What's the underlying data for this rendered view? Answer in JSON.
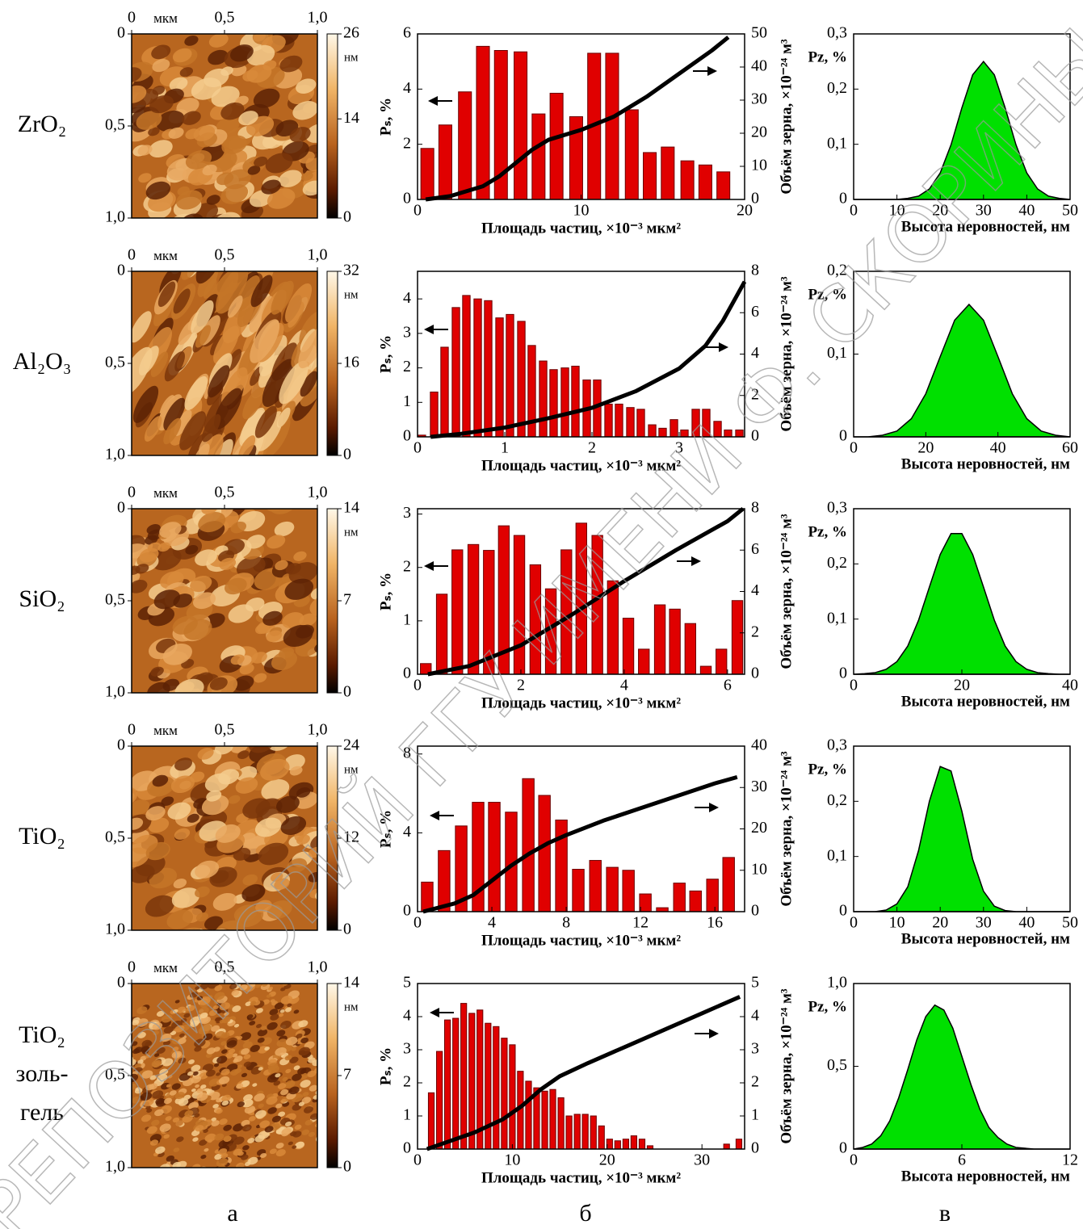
{
  "figure": {
    "row_labels": [
      [
        "ZrO₂"
      ],
      [
        "Al₂O₃"
      ],
      [
        "SiO₂"
      ],
      [
        "TiO₂"
      ],
      [
        "TiO₂",
        "золь-",
        "гель"
      ]
    ],
    "panel_labels": [
      "а",
      "б",
      "в"
    ],
    "watermark": "РЕПОЗИТОРИЙ ГГУ ИМЕНИ Ф. СКОРИНЫ"
  },
  "chart_data": [
    {
      "type": "image",
      "xlim": [
        0,
        1
      ],
      "xticks": [
        0,
        {
          "value": 0.5,
          "label": "0,5"
        },
        {
          "value": 1,
          "label": "1,0"
        }
      ],
      "x_unit": "мкм",
      "ylim": [
        0,
        1
      ],
      "yticks": [
        0,
        {
          "value": 0.5,
          "label": "0,5"
        },
        {
          "value": 1,
          "label": "1,0"
        }
      ],
      "y_reversed": true,
      "colorbar": {
        "lim": [
          0,
          26
        ],
        "ticks": [
          0,
          14,
          26
        ],
        "unit": "нм"
      }
    },
    {
      "type": "bar",
      "xlabel": "Площадь частиц, ×10⁻³ мкм²",
      "ylabel": "Pₛ, %",
      "y2label": "Объём зерна, ×10⁻²⁴ м³",
      "xlim": [
        0,
        20
      ],
      "xticks": [
        0,
        10,
        20
      ],
      "ylim": [
        0,
        6
      ],
      "yticks": [
        0,
        2,
        4,
        6
      ],
      "y2lim": [
        0,
        50
      ],
      "y2ticks": [
        0,
        10,
        20,
        30,
        40,
        50
      ],
      "series": [
        {
          "type": "bar",
          "color": "#e00000",
          "x": [
            0.6,
            1.7,
            2.9,
            4.0,
            5.1,
            6.3,
            7.4,
            8.5,
            9.7,
            10.8,
            11.9,
            13.1,
            14.2,
            15.3,
            16.5,
            17.6,
            18.7
          ],
          "values": [
            1.85,
            2.7,
            3.9,
            5.55,
            5.4,
            5.35,
            3.1,
            3.85,
            3.0,
            5.3,
            5.3,
            3.25,
            1.7,
            1.9,
            1.4,
            1.25,
            1.0
          ]
        },
        {
          "type": "line",
          "color": "#000000",
          "axis": "y2",
          "x": [
            0.5,
            2,
            4,
            5,
            6,
            7,
            8,
            10,
            12,
            14,
            16,
            18,
            19
          ],
          "values": [
            0,
            1,
            4,
            7,
            11,
            15,
            18,
            21,
            25,
            31,
            38,
            45,
            49
          ]
        }
      ]
    },
    {
      "type": "area",
      "xlabel": "Высота неровностей, нм",
      "ylabel": "Pᴢ, %",
      "xlim": [
        0,
        50
      ],
      "xticks": [
        0,
        10,
        20,
        30,
        40,
        50
      ],
      "ylim": [
        0,
        0.3
      ],
      "yticks": [
        0,
        {
          "value": 0.1,
          "label": "0,1"
        },
        {
          "value": 0.2,
          "label": "0,2"
        },
        {
          "value": 0.3,
          "label": "0,3"
        }
      ],
      "color": "#00e000",
      "x": [
        0,
        2.5,
        5,
        7.5,
        10,
        12.5,
        15,
        17.5,
        20,
        22.5,
        25,
        27.5,
        30,
        32.5,
        35,
        37.5,
        40,
        42.5,
        45,
        47.5,
        50
      ],
      "values": [
        0,
        0,
        0,
        0,
        0,
        0.002,
        0.006,
        0.019,
        0.048,
        0.099,
        0.166,
        0.226,
        0.25,
        0.226,
        0.166,
        0.099,
        0.048,
        0.019,
        0.006,
        0.002,
        0
      ]
    },
    {
      "type": "image",
      "xlim": [
        0,
        1
      ],
      "xticks": [
        0,
        {
          "value": 0.5,
          "label": "0,5"
        },
        {
          "value": 1,
          "label": "1,0"
        }
      ],
      "x_unit": "мкм",
      "ylim": [
        0,
        1
      ],
      "yticks": [
        0,
        {
          "value": 0.5,
          "label": "0,5"
        },
        {
          "value": 1,
          "label": "1,0"
        }
      ],
      "y_reversed": true,
      "colorbar": {
        "lim": [
          0,
          32
        ],
        "ticks": [
          0,
          16,
          32
        ],
        "unit": "нм"
      }
    },
    {
      "type": "bar",
      "xlabel": "Площадь частиц, ×10⁻³ мкм²",
      "ylabel": "Pₛ, %",
      "y2label": "Объём зерна, ×10⁻²⁴ м³",
      "xlim": [
        0,
        3.75
      ],
      "xticks": [
        0,
        1,
        2,
        3
      ],
      "ylim": [
        0,
        4.8
      ],
      "yticks": [
        0,
        1,
        2,
        3,
        4
      ],
      "y2lim": [
        0,
        8
      ],
      "y2ticks": [
        0,
        2,
        4,
        6,
        8
      ],
      "series": [
        {
          "type": "bar",
          "color": "#e00000",
          "x": [
            0.05,
            0.19,
            0.31,
            0.44,
            0.56,
            0.69,
            0.81,
            0.94,
            1.06,
            1.19,
            1.31,
            1.44,
            1.56,
            1.69,
            1.81,
            1.94,
            2.06,
            2.19,
            2.31,
            2.44,
            2.56,
            2.69,
            2.81,
            2.94,
            3.06,
            3.19,
            3.31,
            3.44,
            3.56,
            3.69
          ],
          "values": [
            0.05,
            1.3,
            2.6,
            3.75,
            4.1,
            4.0,
            3.95,
            3.45,
            3.55,
            3.35,
            2.65,
            2.2,
            1.95,
            2.0,
            2.05,
            1.65,
            1.65,
            0.95,
            0.95,
            0.85,
            0.8,
            0.35,
            0.25,
            0.5,
            0.2,
            0.8,
            0.8,
            0.45,
            0.2,
            0.2
          ]
        },
        {
          "type": "line",
          "color": "#000000",
          "axis": "y2",
          "x": [
            0.15,
            0.5,
            1,
            1.5,
            2,
            2.5,
            3,
            3.3,
            3.5,
            3.75
          ],
          "values": [
            0,
            0.15,
            0.45,
            0.9,
            1.4,
            2.2,
            3.3,
            4.4,
            5.6,
            7.5
          ]
        }
      ]
    },
    {
      "type": "area",
      "xlabel": "Высота неровностей, нм",
      "ylabel": "Pᴢ, %",
      "xlim": [
        0,
        60
      ],
      "xticks": [
        0,
        20,
        40,
        60
      ],
      "ylim": [
        0,
        0.2
      ],
      "yticks": [
        0,
        {
          "value": 0.1,
          "label": "0,1"
        },
        {
          "value": 0.2,
          "label": "0,2"
        }
      ],
      "color": "#00e000",
      "x": [
        0,
        4,
        8,
        12,
        16,
        20,
        24,
        28,
        32,
        36,
        40,
        44,
        48,
        52,
        56,
        60
      ],
      "values": [
        0,
        0,
        0.002,
        0.007,
        0.022,
        0.052,
        0.097,
        0.141,
        0.16,
        0.141,
        0.097,
        0.052,
        0.022,
        0.007,
        0.002,
        0
      ]
    },
    {
      "type": "image",
      "xlim": [
        0,
        1
      ],
      "xticks": [
        0,
        {
          "value": 0.5,
          "label": "0,5"
        },
        {
          "value": 1,
          "label": "1,0"
        }
      ],
      "x_unit": "мкм",
      "ylim": [
        0,
        1
      ],
      "yticks": [
        0,
        {
          "value": 0.5,
          "label": "0,5"
        },
        {
          "value": 1,
          "label": "1,0"
        }
      ],
      "y_reversed": true,
      "colorbar": {
        "lim": [
          0,
          14
        ],
        "ticks": [
          0,
          7,
          14
        ],
        "unit": "нм"
      }
    },
    {
      "type": "bar",
      "xlabel": "Площадь частиц, ×10⁻³ мкм²",
      "ylabel": "Pₛ, %",
      "y2label": "Объём зерна, ×10⁻²⁴ м³",
      "xlim": [
        0,
        6.33
      ],
      "xticks": [
        0,
        2,
        4,
        6
      ],
      "ylim": [
        0,
        3.1
      ],
      "yticks": [
        0,
        1,
        2,
        3
      ],
      "y2lim": [
        0,
        8
      ],
      "y2ticks": [
        0,
        2,
        4,
        6,
        8
      ],
      "series": [
        {
          "type": "bar",
          "color": "#e00000",
          "x": [
            0.16,
            0.47,
            0.77,
            1.08,
            1.38,
            1.67,
            1.97,
            2.28,
            2.58,
            2.88,
            3.17,
            3.48,
            3.78,
            4.08,
            4.38,
            4.69,
            4.98,
            5.28,
            5.58,
            5.88,
            6.19
          ],
          "values": [
            0.2,
            1.5,
            2.33,
            2.43,
            2.32,
            2.78,
            2.6,
            2.05,
            1.6,
            2.33,
            2.83,
            2.6,
            1.75,
            1.05,
            0.47,
            1.3,
            1.22,
            0.95,
            0.15,
            0.47,
            1.38
          ]
        },
        {
          "type": "line",
          "color": "#000000",
          "axis": "y2",
          "x": [
            0.2,
            1,
            2,
            3,
            4,
            5,
            6,
            6.3
          ],
          "values": [
            0,
            0.4,
            1.4,
            2.9,
            4.5,
            6.0,
            7.4,
            8
          ]
        }
      ]
    },
    {
      "type": "area",
      "xlabel": "Высота неровностей, нм",
      "ylabel": "Pᴢ, %",
      "xlim": [
        0,
        40
      ],
      "xticks": [
        0,
        20,
        40
      ],
      "ylim": [
        0,
        0.3
      ],
      "yticks": [
        0,
        {
          "value": 0.1,
          "label": "0,1"
        },
        {
          "value": 0.2,
          "label": "0,2"
        },
        {
          "value": 0.3,
          "label": "0,3"
        }
      ],
      "color": "#00e000",
      "x": [
        0,
        2,
        4,
        6,
        8,
        10,
        12,
        14,
        16,
        18,
        20,
        22,
        24,
        26,
        28,
        30,
        32,
        34,
        36,
        38,
        40
      ],
      "values": [
        0,
        0.001,
        0.003,
        0.009,
        0.023,
        0.051,
        0.098,
        0.158,
        0.217,
        0.255,
        0.255,
        0.217,
        0.158,
        0.098,
        0.051,
        0.023,
        0.009,
        0.003,
        0.001,
        0,
        0
      ]
    },
    {
      "type": "image",
      "xlim": [
        0,
        1
      ],
      "xticks": [
        0,
        {
          "value": 0.5,
          "label": "0,5"
        },
        {
          "value": 1,
          "label": "1,0"
        }
      ],
      "x_unit": "мкм",
      "ylim": [
        0,
        1
      ],
      "yticks": [
        0,
        {
          "value": 0.5,
          "label": "0,5"
        },
        {
          "value": 1,
          "label": "1,0"
        }
      ],
      "y_reversed": true,
      "colorbar": {
        "lim": [
          0,
          24
        ],
        "ticks": [
          0,
          12,
          24
        ],
        "unit": "нм"
      }
    },
    {
      "type": "bar",
      "xlabel": "Площадь частиц, ×10⁻³ мкм²",
      "ylabel": "Pₛ, %",
      "y2label": "Объём зерна, ×10⁻²⁴ м³",
      "xlim": [
        0,
        17.6
      ],
      "xticks": [
        0,
        4,
        8,
        12,
        16
      ],
      "ylim": [
        0,
        8.4
      ],
      "yticks": [
        0,
        4,
        8
      ],
      "y2lim": [
        0,
        40
      ],
      "y2ticks": [
        0,
        10,
        20,
        30,
        40
      ],
      "series": [
        {
          "type": "bar",
          "color": "#e00000",
          "x": [
            0.52,
            1.43,
            2.35,
            3.26,
            4.13,
            5.04,
            5.96,
            6.83,
            7.74,
            8.65,
            9.57,
            10.48,
            11.35,
            12.26,
            13.17,
            14.09,
            14.96,
            15.87,
            16.74
          ],
          "values": [
            1.5,
            3.1,
            4.35,
            5.55,
            5.55,
            5.05,
            6.75,
            5.9,
            4.65,
            2.15,
            2.6,
            2.25,
            2.1,
            0.9,
            0.2,
            1.45,
            1.05,
            1.65,
            2.75
          ]
        },
        {
          "type": "line",
          "color": "#000000",
          "axis": "y2",
          "x": [
            0.3,
            2,
            3,
            4,
            5,
            6,
            7,
            8,
            10,
            12,
            14,
            16,
            17.2
          ],
          "values": [
            0,
            2,
            4,
            7.5,
            11,
            14,
            16.5,
            18.5,
            22,
            25,
            28,
            31,
            32.5
          ]
        }
      ]
    },
    {
      "type": "area",
      "xlabel": "Высота неровностей, нм",
      "ylabel": "Pᴢ, %",
      "xlim": [
        0,
        50
      ],
      "xticks": [
        0,
        10,
        20,
        30,
        40,
        50
      ],
      "ylim": [
        0,
        0.3
      ],
      "yticks": [
        0,
        {
          "value": 0.1,
          "label": "0,1"
        },
        {
          "value": 0.2,
          "label": "0,2"
        },
        {
          "value": 0.3,
          "label": "0,3"
        }
      ],
      "color": "#00e000",
      "x": [
        0,
        2.5,
        5,
        7.5,
        10,
        12.5,
        15,
        17.5,
        20,
        22.5,
        25,
        27.5,
        30,
        32.5,
        35,
        37.5,
        40,
        42.5,
        45,
        47.5,
        50
      ],
      "values": [
        0,
        0,
        0,
        0.003,
        0.014,
        0.045,
        0.111,
        0.2,
        0.263,
        0.255,
        0.182,
        0.095,
        0.037,
        0.01,
        0.002,
        0,
        0,
        0,
        0,
        0,
        0
      ]
    },
    {
      "type": "image",
      "xlim": [
        0,
        1
      ],
      "xticks": [
        0,
        {
          "value": 0.5,
          "label": "0,5"
        },
        {
          "value": 1,
          "label": "1,0"
        }
      ],
      "x_unit": "мкм",
      "ylim": [
        0,
        1
      ],
      "yticks": [
        0,
        {
          "value": 0.5,
          "label": "0,5"
        },
        {
          "value": 1,
          "label": "1,0"
        }
      ],
      "y_reversed": true,
      "colorbar": {
        "lim": [
          0,
          14
        ],
        "ticks": [
          0,
          7,
          14
        ],
        "unit": "нм"
      }
    },
    {
      "type": "bar",
      "xlabel": "Площадь частиц, ×10⁻³ мкм²",
      "ylabel": "Pₛ, %",
      "y2label": "Объём зерна, ×10⁻²⁴ м³",
      "xlim": [
        0,
        34.5
      ],
      "xticks": [
        0,
        10,
        20,
        30
      ],
      "ylim": [
        0,
        5
      ],
      "yticks": [
        0,
        1,
        2,
        3,
        4,
        5
      ],
      "y2lim": [
        0,
        5
      ],
      "y2ticks": [
        0,
        1,
        2,
        3,
        4,
        5
      ],
      "series": [
        {
          "type": "bar",
          "color": "#e00000",
          "x": [
            1.45,
            2.31,
            3.16,
            4.02,
            4.87,
            5.73,
            6.58,
            7.44,
            8.29,
            9.15,
            10.0,
            10.85,
            11.71,
            12.56,
            13.42,
            14.27,
            15.13,
            15.98,
            16.84,
            17.69,
            18.55,
            19.4,
            20.26,
            21.11,
            21.97,
            22.82,
            23.68,
            24.53,
            32.6,
            33.9
          ],
          "values": [
            1.7,
            2.95,
            3.9,
            3.95,
            4.4,
            4.1,
            4.2,
            3.8,
            3.7,
            3.35,
            3.15,
            2.35,
            2.05,
            1.85,
            1.75,
            1.8,
            1.55,
            1.0,
            1.05,
            1.05,
            1.0,
            0.7,
            0.3,
            0.25,
            0.3,
            0.4,
            0.3,
            0.1,
            0.15,
            0.3
          ]
        },
        {
          "type": "line",
          "color": "#000000",
          "axis": "y2",
          "x": [
            1,
            3,
            6,
            9,
            11,
            13,
            15,
            18,
            22,
            26,
            30,
            34
          ],
          "values": [
            0,
            0.2,
            0.5,
            0.9,
            1.3,
            1.8,
            2.2,
            2.6,
            3.1,
            3.6,
            4.1,
            4.6
          ]
        }
      ]
    },
    {
      "type": "area",
      "xlabel": "Высота неровностей, нм",
      "ylabel": "Pᴢ, %",
      "xlim": [
        0,
        12
      ],
      "xticks": [
        0,
        6,
        12
      ],
      "ylim": [
        0,
        1
      ],
      "yticks": [
        0,
        {
          "value": 0.5,
          "label": "0,5"
        },
        {
          "value": 1,
          "label": "1,0"
        }
      ],
      "color": "#00e000",
      "x": [
        0,
        0.5,
        1,
        1.5,
        2,
        2.5,
        3,
        3.5,
        4,
        4.5,
        5,
        5.5,
        6,
        6.5,
        7,
        7.5,
        8,
        8.5,
        9,
        9.5,
        10,
        10.5,
        11,
        11.5,
        12
      ],
      "values": [
        0,
        0.01,
        0.03,
        0.08,
        0.17,
        0.31,
        0.48,
        0.66,
        0.8,
        0.87,
        0.84,
        0.73,
        0.56,
        0.39,
        0.24,
        0.13,
        0.07,
        0.03,
        0.01,
        0.005,
        0,
        0,
        0,
        0,
        0
      ]
    }
  ]
}
